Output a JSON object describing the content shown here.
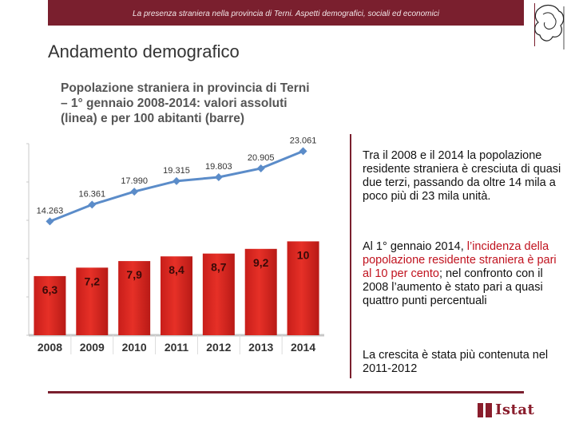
{
  "header": {
    "subtitle": "La presenza straniera nella provincia di Terni. Aspetti demografici, sociali ed economici"
  },
  "section": {
    "title": "Andamento demografico"
  },
  "logo": {
    "name": "Comune di Terni crest"
  },
  "chart_data": {
    "type": "bar+line",
    "title": "Popolazione straniera in provincia di Terni – 1° gennaio 2008-2014: valori assoluti (linea) e per 100 abitanti (barre)",
    "categories": [
      "2008",
      "2009",
      "2010",
      "2011",
      "2012",
      "2013",
      "2014"
    ],
    "series": [
      {
        "name": "per 100 abitanti (barre)",
        "kind": "bar",
        "values": [
          6.3,
          7.2,
          7.9,
          8.4,
          8.7,
          9.2,
          10
        ],
        "labels": [
          "6,3",
          "7,2",
          "7,9",
          "8,4",
          "8,7",
          "9,2",
          "10"
        ],
        "color": "#e63027"
      },
      {
        "name": "valori assoluti (linea)",
        "kind": "line",
        "values": [
          14263,
          16361,
          17990,
          19315,
          19803,
          20905,
          23061
        ],
        "labels": [
          "14.263",
          "16.361",
          "17.990",
          "19.315",
          "19.803",
          "20.905",
          "23.061"
        ],
        "color": "#5b8cc9"
      }
    ],
    "xlabel": "",
    "ylabel": "",
    "grid": false,
    "bar_ylim": [
      0,
      20
    ],
    "line_ylim": [
      0,
      24000
    ]
  },
  "text": {
    "p1": "Tra il 2008 e il 2014 la popolazione residente straniera è cresciuta di quasi due terzi, passando da oltre 14 mila a poco più di 23 mila unità.",
    "p2_a": "Al 1° gennaio 2014, ",
    "p2_b": "l’incidenza della popolazione residente straniera è pari al 10 per cento",
    "p2_c": "; nel confronto con il 2008 l’aumento è stato pari a quasi quattro punti percentuali",
    "p3": "La crescita è stata più contenuta nel 2011-2012"
  },
  "footer": {
    "brand": "Istat"
  },
  "colors": {
    "accent": "#7a1f2e",
    "bar": "#e63027",
    "line": "#5b8cc9",
    "highlight": "#c0121e"
  }
}
